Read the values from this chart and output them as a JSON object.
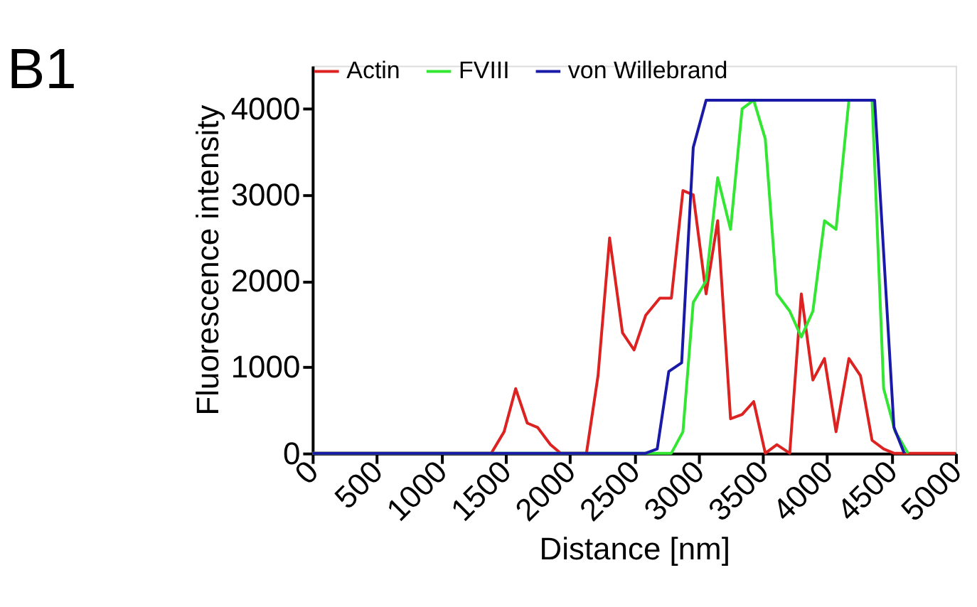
{
  "chart_data": {
    "type": "line",
    "title": "B1",
    "xlabel": "Distance [nm]",
    "ylabel": "Fluorescence intensity",
    "xlim": [
      0,
      5000
    ],
    "ylim": [
      0,
      4500
    ],
    "xticks": [
      0,
      500,
      1000,
      1500,
      2000,
      2500,
      3000,
      3500,
      4000,
      4500,
      5000
    ],
    "yticks": [
      0,
      1000,
      2000,
      3000,
      4000
    ],
    "legend": "top",
    "grid": false,
    "marker": "none",
    "line_style": "solid",
    "series": [
      {
        "name": "Actin",
        "color": "#dd2222",
        "x": [
          0,
          1390,
          1490,
          1580,
          1670,
          1750,
          1850,
          1930,
          2130,
          2220,
          2310,
          2410,
          2500,
          2590,
          2700,
          2790,
          2880,
          2960,
          3060,
          3150,
          3250,
          3340,
          3430,
          3520,
          3610,
          3710,
          3800,
          3890,
          3980,
          4070,
          4170,
          4260,
          4350,
          4440,
          4520,
          5000
        ],
        "values": [
          0,
          0,
          250,
          750,
          350,
          300,
          100,
          0,
          0,
          900,
          2500,
          1400,
          1200,
          1600,
          1800,
          1800,
          3050,
          3000,
          1850,
          2700,
          400,
          450,
          600,
          0,
          100,
          0,
          1850,
          850,
          1100,
          250,
          1100,
          900,
          150,
          50,
          0,
          0
        ]
      },
      {
        "name": "FVIII",
        "color": "#33e633",
        "x": [
          0,
          2790,
          2880,
          2960,
          3060,
          3150,
          3250,
          3340,
          3430,
          3520,
          3610,
          3710,
          3800,
          3890,
          3980,
          4070,
          4170,
          4350,
          4440,
          4530,
          4630
        ],
        "values": [
          0,
          0,
          250,
          1750,
          2000,
          3200,
          2600,
          4000,
          4100,
          3650,
          1850,
          1650,
          1350,
          1650,
          2700,
          2600,
          4100,
          4100,
          750,
          250,
          0
        ]
      },
      {
        "name": "von Willebrand",
        "color": "#1a1aa8",
        "x": [
          0,
          2590,
          2680,
          2770,
          2870,
          2960,
          3060,
          4370,
          4520,
          4600
        ],
        "values": [
          0,
          0,
          50,
          950,
          1050,
          3550,
          4100,
          4100,
          300,
          0
        ]
      }
    ]
  }
}
